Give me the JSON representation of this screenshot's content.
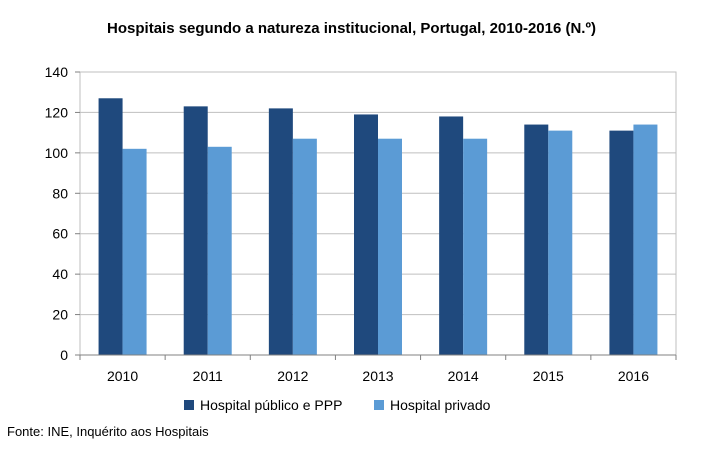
{
  "chart_data": {
    "type": "bar",
    "title": "Hospitais segundo a natureza institucional,  Portugal, 2010-2016  (N.º)",
    "categories": [
      "2010",
      "2011",
      "2012",
      "2013",
      "2014",
      "2015",
      "2016"
    ],
    "series": [
      {
        "name": "Hospital público e PPP",
        "color": "#1f497d",
        "values": [
          127,
          123,
          122,
          119,
          118,
          114,
          111
        ]
      },
      {
        "name": "Hospital privado",
        "color": "#5b9bd5",
        "values": [
          102,
          103,
          107,
          107,
          107,
          111,
          114
        ]
      }
    ],
    "ylim": [
      0,
      140
    ],
    "yticks": [
      0,
      20,
      40,
      60,
      80,
      100,
      120,
      140
    ],
    "grid": true,
    "legend": "bottom"
  },
  "source": "Fonte: INE, Inquérito aos Hospitais"
}
